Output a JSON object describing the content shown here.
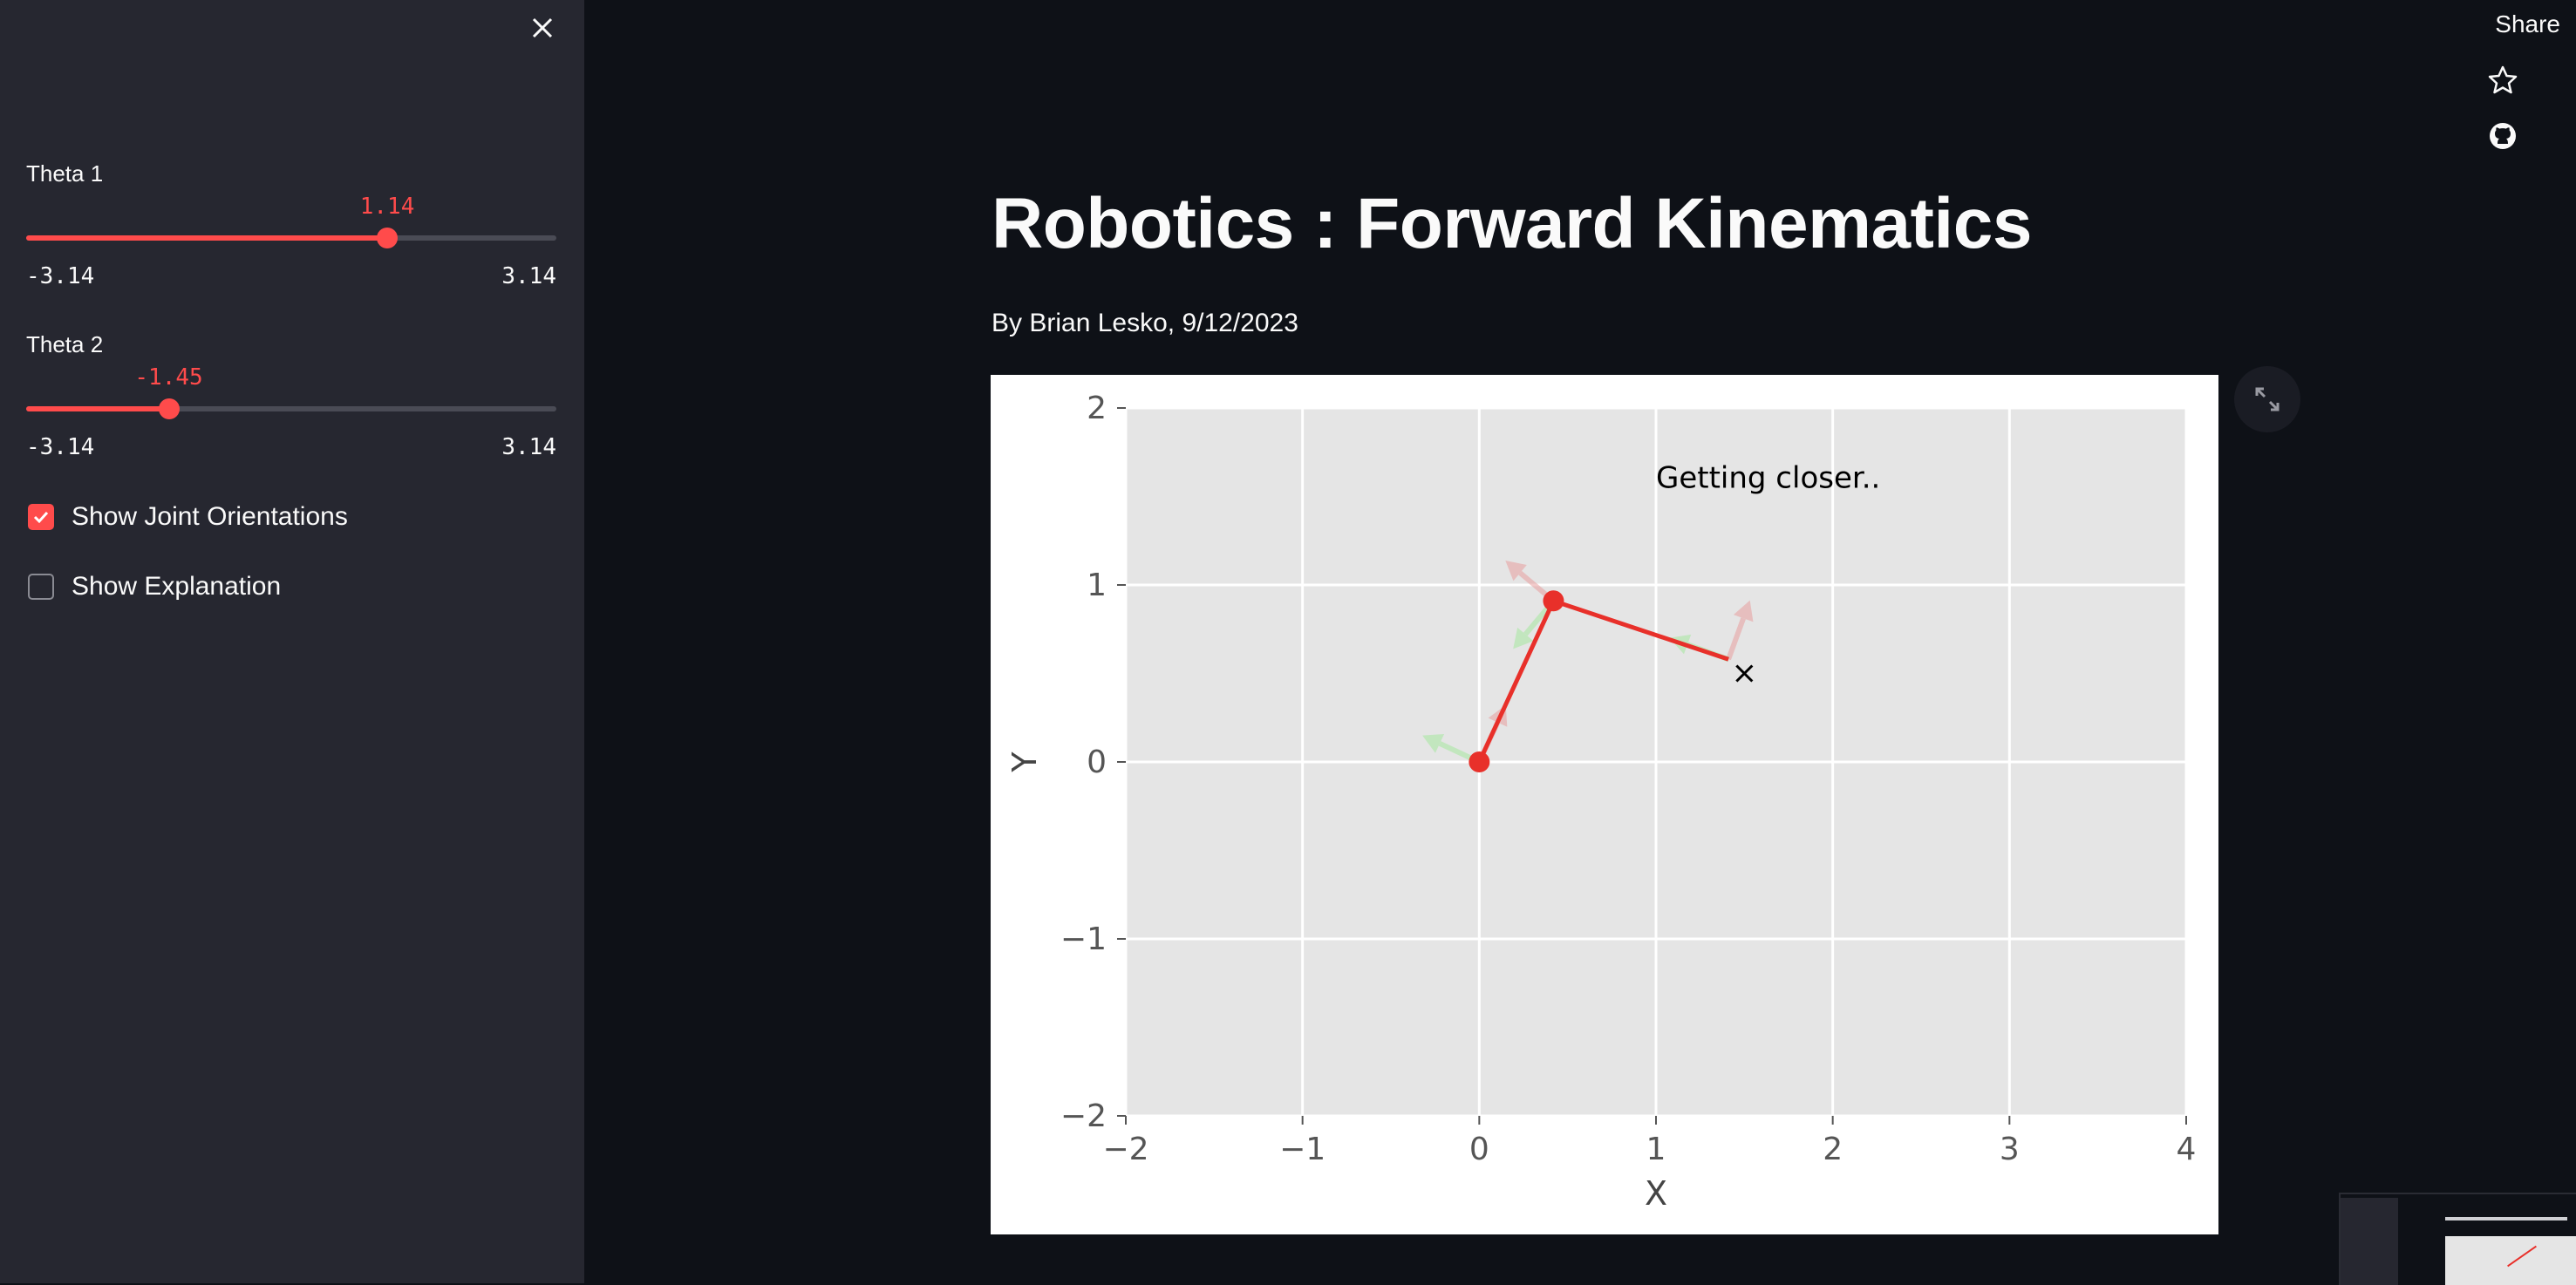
{
  "sidebar": {
    "sliders": [
      {
        "label": "Theta 1",
        "value": "1.14",
        "min": "-3.14",
        "max": "3.14",
        "fraction": 0.681
      },
      {
        "label": "Theta 2",
        "value": "-1.45",
        "min": "-3.14",
        "max": "3.14",
        "fraction": 0.269
      }
    ],
    "checkboxes": [
      {
        "label": "Show Joint Orientations",
        "checked": true
      },
      {
        "label": "Show Explanation",
        "checked": false
      }
    ]
  },
  "toolbar": {
    "share_label": "Share",
    "icons": [
      "star-icon",
      "github-icon"
    ]
  },
  "main": {
    "title": "Robotics : Forward Kinematics",
    "byline": "By Brian Lesko, 9/12/2023"
  },
  "colors": {
    "accent": "#ff4b4b",
    "background": "#0e1117",
    "sidebar": "#262730",
    "plot_bg": "#e5e5e5",
    "arm": "#e8302a"
  },
  "chart_data": {
    "type": "line",
    "title": "",
    "annotation": "Getting closer..",
    "xlabel": "X",
    "ylabel": "Y",
    "xlim": [
      -2,
      4
    ],
    "ylim": [
      -2,
      2
    ],
    "xticks": [
      "−2",
      "−1",
      "0",
      "1",
      "2",
      "3",
      "4"
    ],
    "yticks": [
      "2",
      "1",
      "0",
      "−1",
      "−2"
    ],
    "xtick_values": [
      -2,
      -1,
      0,
      1,
      2,
      3,
      4
    ],
    "ytick_values": [
      2,
      1,
      0,
      -1,
      -2
    ],
    "grid": true,
    "arm_points": [
      {
        "x": 0,
        "y": 0
      },
      {
        "x": 0.42,
        "y": 0.91
      },
      {
        "x": 1.41,
        "y": 0.58
      }
    ],
    "target": {
      "x": 1.5,
      "y": 0.5
    },
    "joint_orientation_angles_deg": [
      65,
      140,
      70
    ]
  }
}
